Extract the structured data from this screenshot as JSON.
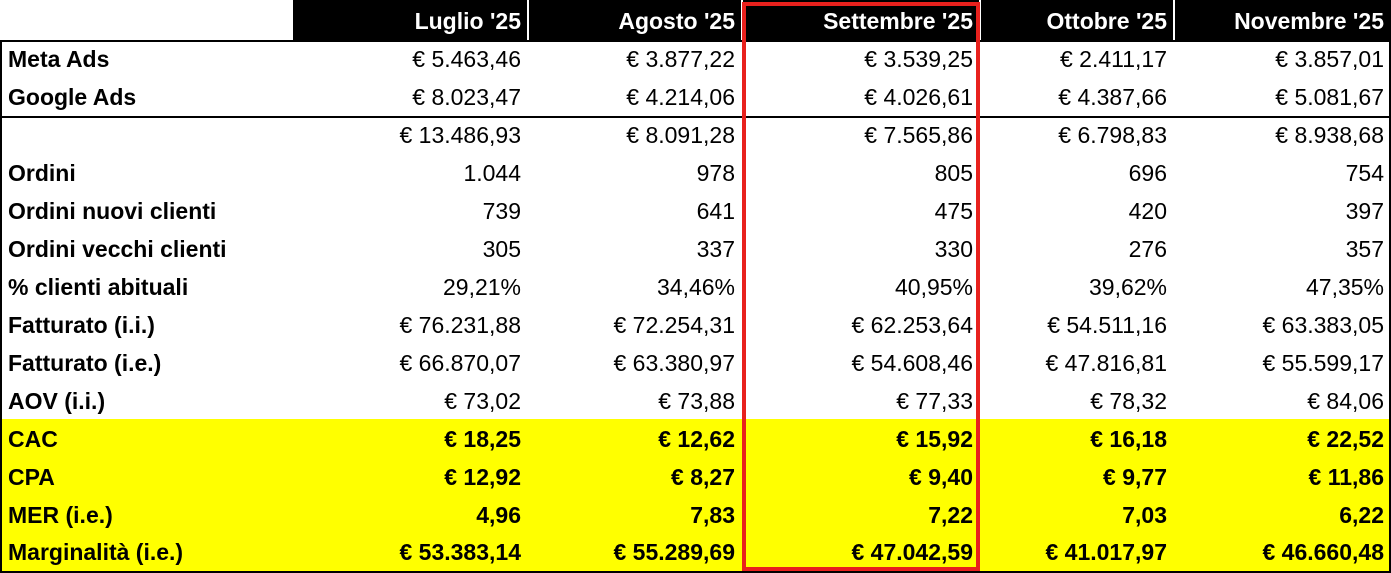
{
  "headers": [
    "Luglio '25",
    "Agosto '25",
    "Settembre '25",
    "Ottobre '25",
    "Novembre '25"
  ],
  "rows": [
    {
      "label": "Meta Ads",
      "values": [
        "€ 5.463,46",
        "€ 3.877,22",
        "€ 3.539,25",
        "€ 2.411,17",
        "€ 3.857,01"
      ]
    },
    {
      "label": "Google Ads",
      "values": [
        "€ 8.023,47",
        "€ 4.214,06",
        "€ 4.026,61",
        "€ 4.387,66",
        "€ 5.081,67"
      ]
    },
    {
      "label": "",
      "values": [
        "€ 13.486,93",
        "€ 8.091,28",
        "€ 7.565,86",
        "€ 6.798,83",
        "€ 8.938,68"
      ]
    },
    {
      "label": "Ordini",
      "values": [
        "1.044",
        "978",
        "805",
        "696",
        "754"
      ]
    },
    {
      "label": "Ordini nuovi clienti",
      "values": [
        "739",
        "641",
        "475",
        "420",
        "397"
      ]
    },
    {
      "label": "Ordini vecchi clienti",
      "values": [
        "305",
        "337",
        "330",
        "276",
        "357"
      ]
    },
    {
      "label": "% clienti abituali",
      "values": [
        "29,21%",
        "34,46%",
        "40,95%",
        "39,62%",
        "47,35%"
      ]
    },
    {
      "label": "Fatturato (i.i.)",
      "values": [
        "€ 76.231,88",
        "€ 72.254,31",
        "€ 62.253,64",
        "€ 54.511,16",
        "€ 63.383,05"
      ]
    },
    {
      "label": "Fatturato (i.e.)",
      "values": [
        "€ 66.870,07",
        "€ 63.380,97",
        "€ 54.608,46",
        "€ 47.816,81",
        "€ 55.599,17"
      ]
    },
    {
      "label": "AOV (i.i.)",
      "values": [
        "€ 73,02",
        "€ 73,88",
        "€ 77,33",
        "€ 78,32",
        "€ 84,06"
      ]
    },
    {
      "label": "CAC",
      "values": [
        "€ 18,25",
        "€ 12,62",
        "€ 15,92",
        "€ 16,18",
        "€ 22,52"
      ]
    },
    {
      "label": "CPA",
      "values": [
        "€ 12,92",
        "€ 8,27",
        "€ 9,40",
        "€ 9,77",
        "€ 11,86"
      ]
    },
    {
      "label": "MER (i.e.)",
      "values": [
        "4,96",
        "7,83",
        "7,22",
        "7,03",
        "6,22"
      ]
    },
    {
      "label": "Marginalità (i.e.)",
      "values": [
        "€ 53.383,14",
        "€ 55.289,69",
        "€ 47.042,59",
        "€ 41.017,97",
        "€ 46.660,48"
      ]
    }
  ],
  "colors": {
    "header_bg": "#000000",
    "header_text": "#ffffff",
    "highlight_rows_bg": "#ffff00",
    "selected_column_border": "#e8211d"
  }
}
